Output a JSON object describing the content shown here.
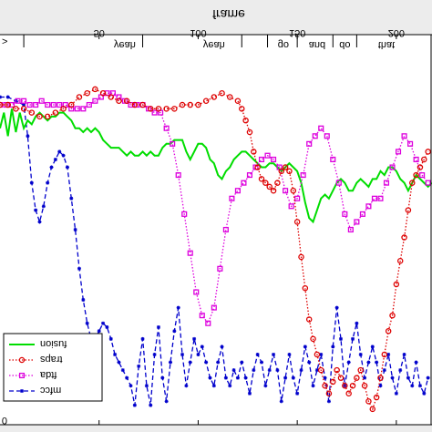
{
  "chart_data": {
    "type": "line",
    "title": "",
    "xlabel": "frame",
    "ylabel": "",
    "xlim": [
      0,
      218
    ],
    "ylim": [
      0,
      1
    ],
    "x_ticks": [
      "50",
      "100",
      "150",
      "200"
    ],
    "x_tick_values": [
      50,
      100,
      150,
      200
    ],
    "x_mirrored": true,
    "y_tick_labels": [
      ">",
      "0"
    ],
    "words": [
      {
        "text": "yeah",
        "x": 63
      },
      {
        "text": "yeah",
        "x": 108
      },
      {
        "text": "go",
        "x": 143
      },
      {
        "text": "and",
        "x": 160
      },
      {
        "text": "do",
        "x": 174
      },
      {
        "text": "that",
        "x": 195
      }
    ],
    "word_boundaries": [
      12,
      72,
      122,
      135,
      150,
      168,
      180
    ],
    "grid": false,
    "legend_position": "bottom-left",
    "series": [
      {
        "name": "fusion",
        "color": "#00dd00",
        "line": "solid",
        "marker": "none",
        "x": [
          0,
          2,
          4,
          6,
          8,
          10,
          12,
          14,
          16,
          18,
          20,
          22,
          24,
          26,
          28,
          30,
          32,
          34,
          36,
          38,
          40,
          42,
          44,
          46,
          48,
          50,
          52,
          54,
          56,
          58,
          60,
          62,
          64,
          66,
          68,
          70,
          72,
          74,
          76,
          78,
          80,
          82,
          84,
          86,
          88,
          90,
          92,
          94,
          96,
          98,
          100,
          102,
          104,
          106,
          108,
          110,
          112,
          114,
          116,
          118,
          120,
          122,
          124,
          126,
          128,
          130,
          132,
          134,
          136,
          138,
          140,
          142,
          144,
          146,
          148,
          150,
          152,
          154,
          156,
          158,
          160,
          162,
          164,
          166,
          168,
          170,
          172,
          174,
          176,
          178,
          180,
          182,
          184,
          186,
          188,
          190,
          192,
          194,
          196,
          198,
          200,
          202,
          204,
          206,
          208,
          210,
          212,
          214,
          216,
          218
        ],
        "values": [
          0.76,
          0.8,
          0.74,
          0.81,
          0.75,
          0.8,
          0.76,
          0.78,
          0.77,
          0.79,
          0.8,
          0.79,
          0.78,
          0.79,
          0.79,
          0.8,
          0.8,
          0.79,
          0.78,
          0.76,
          0.76,
          0.75,
          0.76,
          0.75,
          0.76,
          0.75,
          0.73,
          0.72,
          0.71,
          0.71,
          0.71,
          0.7,
          0.69,
          0.7,
          0.69,
          0.69,
          0.7,
          0.69,
          0.7,
          0.69,
          0.69,
          0.71,
          0.72,
          0.72,
          0.73,
          0.73,
          0.73,
          0.7,
          0.68,
          0.7,
          0.72,
          0.72,
          0.71,
          0.68,
          0.67,
          0.64,
          0.63,
          0.65,
          0.66,
          0.68,
          0.69,
          0.7,
          0.7,
          0.69,
          0.68,
          0.67,
          0.66,
          0.66,
          0.67,
          0.67,
          0.66,
          0.65,
          0.66,
          0.67,
          0.66,
          0.65,
          0.62,
          0.57,
          0.53,
          0.52,
          0.55,
          0.58,
          0.59,
          0.58,
          0.6,
          0.62,
          0.63,
          0.62,
          0.6,
          0.6,
          0.62,
          0.63,
          0.62,
          0.61,
          0.63,
          0.63,
          0.65,
          0.64,
          0.66,
          0.66,
          0.65,
          0.63,
          0.62,
          0.6,
          0.62,
          0.64,
          0.63,
          0.62,
          0.61,
          0.62
        ]
      },
      {
        "name": "traps",
        "color": "#dd0000",
        "line": "dotted",
        "marker": "circle",
        "x": [
          0,
          4,
          8,
          12,
          16,
          20,
          24,
          28,
          32,
          36,
          40,
          44,
          48,
          52,
          56,
          60,
          64,
          68,
          72,
          76,
          80,
          84,
          88,
          92,
          96,
          100,
          104,
          108,
          112,
          116,
          120,
          122,
          124,
          126,
          128,
          130,
          132,
          134,
          136,
          138,
          140,
          142,
          144,
          146,
          148,
          150,
          152,
          154,
          156,
          158,
          160,
          162,
          164,
          166,
          168,
          170,
          172,
          174,
          176,
          178,
          180,
          182,
          184,
          186,
          188,
          190,
          192,
          194,
          196,
          198,
          200,
          202,
          204,
          206,
          208,
          210,
          212,
          214,
          216
        ],
        "values": [
          0.82,
          0.82,
          0.81,
          0.81,
          0.8,
          0.79,
          0.79,
          0.8,
          0.81,
          0.82,
          0.84,
          0.85,
          0.86,
          0.85,
          0.84,
          0.83,
          0.83,
          0.82,
          0.82,
          0.81,
          0.81,
          0.81,
          0.81,
          0.82,
          0.82,
          0.82,
          0.83,
          0.84,
          0.85,
          0.84,
          0.83,
          0.81,
          0.78,
          0.75,
          0.7,
          0.66,
          0.63,
          0.62,
          0.61,
          0.6,
          0.62,
          0.65,
          0.66,
          0.65,
          0.6,
          0.52,
          0.43,
          0.35,
          0.27,
          0.22,
          0.18,
          0.14,
          0.1,
          0.08,
          0.11,
          0.14,
          0.12,
          0.1,
          0.08,
          0.1,
          0.12,
          0.14,
          0.1,
          0.06,
          0.04,
          0.07,
          0.12,
          0.18,
          0.24,
          0.28,
          0.36,
          0.42,
          0.48,
          0.55,
          0.62,
          0.64,
          0.66,
          0.68,
          0.7
        ]
      },
      {
        "name": "ftda",
        "color": "#dd00dd",
        "line": "dotted",
        "marker": "square",
        "x": [
          0,
          3,
          6,
          9,
          12,
          15,
          18,
          21,
          24,
          27,
          30,
          33,
          36,
          39,
          42,
          45,
          48,
          51,
          54,
          57,
          60,
          63,
          66,
          69,
          72,
          75,
          78,
          81,
          84,
          87,
          90,
          93,
          96,
          99,
          102,
          105,
          108,
          111,
          114,
          117,
          120,
          123,
          126,
          129,
          132,
          135,
          138,
          141,
          144,
          147,
          150,
          153,
          156,
          159,
          162,
          165,
          168,
          171,
          174,
          177,
          180,
          183,
          186,
          189,
          192,
          195,
          198,
          201,
          204,
          207,
          210,
          213,
          216
        ],
        "values": [
          0.82,
          0.82,
          0.82,
          0.83,
          0.83,
          0.82,
          0.82,
          0.83,
          0.82,
          0.82,
          0.82,
          0.82,
          0.81,
          0.81,
          0.81,
          0.82,
          0.83,
          0.84,
          0.85,
          0.85,
          0.84,
          0.83,
          0.82,
          0.82,
          0.82,
          0.81,
          0.8,
          0.8,
          0.76,
          0.72,
          0.64,
          0.54,
          0.44,
          0.34,
          0.28,
          0.26,
          0.3,
          0.4,
          0.5,
          0.58,
          0.6,
          0.62,
          0.64,
          0.66,
          0.68,
          0.69,
          0.68,
          0.66,
          0.6,
          0.56,
          0.58,
          0.64,
          0.72,
          0.74,
          0.76,
          0.74,
          0.68,
          0.62,
          0.54,
          0.5,
          0.52,
          0.54,
          0.56,
          0.58,
          0.58,
          0.62,
          0.66,
          0.7,
          0.74,
          0.72,
          0.68,
          0.64,
          0.62
        ]
      },
      {
        "name": "mfcc",
        "color": "#0000cc",
        "line": "dashed",
        "marker": "star",
        "x": [
          0,
          4,
          8,
          12,
          14,
          16,
          18,
          20,
          22,
          24,
          26,
          28,
          30,
          32,
          34,
          36,
          38,
          40,
          42,
          44,
          46,
          48,
          50,
          52,
          54,
          56,
          58,
          60,
          62,
          64,
          66,
          68,
          70,
          72,
          74,
          76,
          78,
          80,
          82,
          84,
          86,
          88,
          90,
          92,
          94,
          96,
          98,
          100,
          102,
          104,
          106,
          108,
          110,
          112,
          114,
          116,
          118,
          120,
          122,
          124,
          126,
          128,
          130,
          132,
          134,
          136,
          138,
          140,
          142,
          144,
          146,
          148,
          150,
          152,
          154,
          156,
          158,
          160,
          162,
          164,
          166,
          168,
          170,
          172,
          174,
          176,
          178,
          180,
          182,
          184,
          186,
          188,
          190,
          192,
          194,
          196,
          198,
          200,
          202,
          204,
          206,
          208,
          210,
          212,
          214,
          216
        ],
        "values": [
          0.84,
          0.84,
          0.83,
          0.82,
          0.74,
          0.62,
          0.55,
          0.52,
          0.56,
          0.62,
          0.66,
          0.68,
          0.7,
          0.69,
          0.66,
          0.58,
          0.5,
          0.4,
          0.32,
          0.26,
          0.22,
          0.22,
          0.24,
          0.26,
          0.25,
          0.22,
          0.18,
          0.16,
          0.14,
          0.12,
          0.1,
          0.05,
          0.15,
          0.22,
          0.1,
          0.05,
          0.18,
          0.25,
          0.12,
          0.06,
          0.16,
          0.24,
          0.3,
          0.18,
          0.1,
          0.16,
          0.22,
          0.18,
          0.2,
          0.16,
          0.12,
          0.1,
          0.16,
          0.2,
          0.12,
          0.1,
          0.14,
          0.12,
          0.16,
          0.12,
          0.08,
          0.14,
          0.18,
          0.16,
          0.1,
          0.14,
          0.18,
          0.14,
          0.06,
          0.12,
          0.18,
          0.12,
          0.08,
          0.14,
          0.2,
          0.16,
          0.1,
          0.14,
          0.18,
          0.12,
          0.06,
          0.2,
          0.3,
          0.22,
          0.1,
          0.16,
          0.22,
          0.26,
          0.18,
          0.12,
          0.16,
          0.2,
          0.16,
          0.1,
          0.14,
          0.18,
          0.12,
          0.08,
          0.14,
          0.18,
          0.12,
          0.1,
          0.16,
          0.1,
          0.08,
          0.12
        ]
      }
    ]
  }
}
